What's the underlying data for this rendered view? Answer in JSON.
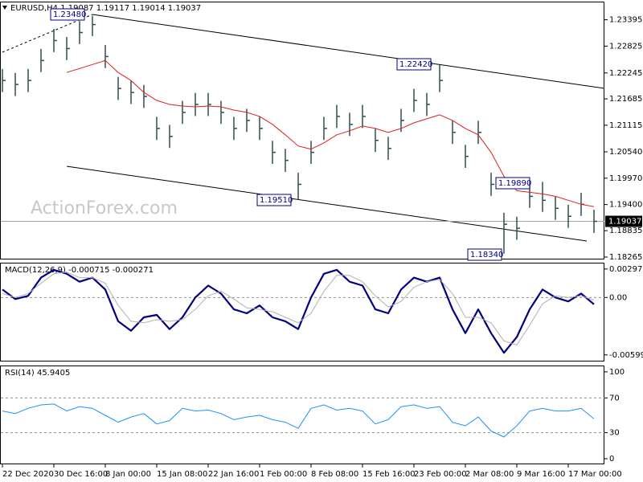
{
  "symbol_label": "EURUSD,H4  1.19087 1.19117 1.19014 1.19037",
  "watermark": "ActionForex.com",
  "chart_data": [
    {
      "type": "ohlc",
      "categories": [
        "22 Dec 2020",
        null,
        null,
        null,
        "30 Dec 16:00",
        null,
        null,
        null,
        "8 Jan 00:00",
        null,
        null,
        null,
        "15 Jan 08:00",
        null,
        null,
        null,
        "22 Jan 16:00",
        null,
        null,
        null,
        "1 Feb 00:00",
        null,
        null,
        null,
        "8 Feb 08:00",
        null,
        null,
        null,
        "15 Feb 16:00",
        null,
        null,
        null,
        "23 Feb 00:00",
        null,
        null,
        null,
        "2 Mar 08:00",
        null,
        null,
        null,
        "9 Mar 16:00",
        null,
        null,
        null,
        "17 Mar 00:00",
        null,
        null
      ],
      "high": [
        1.22332,
        1.22246,
        1.22332,
        1.22764,
        1.23196,
        1.23023,
        1.23369,
        1.2348,
        1.2285,
        1.2216,
        1.22073,
        1.21987,
        1.21296,
        1.21123,
        1.21642,
        1.21814,
        1.21814,
        1.21642,
        1.21296,
        1.21469,
        1.21296,
        1.20778,
        1.20605,
        1.20087,
        1.20778,
        1.21296,
        1.21555,
        1.21383,
        1.21555,
        1.21037,
        1.20864,
        1.21469,
        1.21901,
        1.21814,
        1.2242,
        1.2121,
        1.20692,
        1.2121,
        1.20087,
        1.19224,
        1.19138,
        1.19828,
        1.1989,
        1.19569,
        1.19396,
        1.19655,
        1.19287
      ],
      "low": [
        1.21832,
        1.21746,
        1.21832,
        1.22264,
        1.22696,
        1.22523,
        1.22869,
        1.23041,
        1.2235,
        1.2166,
        1.21573,
        1.21487,
        1.20796,
        1.20623,
        1.21142,
        1.21314,
        1.21314,
        1.21142,
        1.20796,
        1.20969,
        1.20796,
        1.20278,
        1.20105,
        1.1951,
        1.20278,
        1.20796,
        1.21055,
        1.20883,
        1.21055,
        1.20537,
        1.20364,
        1.20969,
        1.21401,
        1.21314,
        1.21832,
        1.2071,
        1.20192,
        1.2071,
        1.19587,
        1.1834,
        1.18638,
        1.19328,
        1.19242,
        1.19069,
        1.18896,
        1.19155,
        1.18787
      ],
      "close": [
        1.22082,
        1.21996,
        1.22082,
        1.22514,
        1.22946,
        1.22773,
        1.23119,
        1.23291,
        1.226,
        1.2191,
        1.21823,
        1.21737,
        1.21046,
        1.20873,
        1.21392,
        1.21564,
        1.21564,
        1.21392,
        1.21046,
        1.21219,
        1.21046,
        1.20528,
        1.20355,
        1.19837,
        1.20528,
        1.21046,
        1.21305,
        1.21133,
        1.21305,
        1.20787,
        1.20614,
        1.21219,
        1.21651,
        1.21564,
        1.22082,
        1.2096,
        1.20442,
        1.2096,
        1.19837,
        1.18974,
        1.18888,
        1.19578,
        1.19492,
        1.19319,
        1.19146,
        1.19405,
        1.19037
      ],
      "bar_color": "#2f4f4f",
      "ma": {
        "color": "#dd1f1f",
        "values": [
          null,
          null,
          null,
          null,
          null,
          1.22255,
          1.22341,
          1.22428,
          1.22514,
          1.22255,
          1.22082,
          1.21823,
          1.21651,
          1.21564,
          1.2153,
          1.21512,
          1.2153,
          1.21512,
          1.21443,
          1.21392,
          1.21305,
          1.21133,
          1.20908,
          1.20666,
          1.20597,
          1.20735,
          1.20908,
          1.20994,
          1.21098,
          1.21046,
          1.2096,
          1.21046,
          1.21167,
          1.21253,
          1.2134,
          1.21219,
          1.21046,
          1.20908,
          1.20528,
          1.2001,
          1.19699,
          1.19665,
          1.1963,
          1.19578,
          1.19492,
          1.19405,
          1.19354
        ]
      },
      "annotations": [
        {
          "text": "1.23480"
        },
        {
          "text": "1.22420"
        },
        {
          "text": "1.19510"
        },
        {
          "text": "1.19890"
        },
        {
          "text": "1.18340"
        }
      ],
      "current_price": {
        "value": 1.19037,
        "label": "1.19037"
      },
      "ylim": [
        1.1823,
        1.2377
      ],
      "yticks": [
        1.23395,
        1.22825,
        1.22245,
        1.21685,
        1.21115,
        {
          "value": 1.2054,
          "label": "1.20540"
        },
        {
          "value": 1.1997,
          "label": "1.19970"
        },
        {
          "value": 1.194,
          "label": "1.19400"
        },
        1.18835,
        1.18265
      ]
    },
    {
      "type": "line",
      "title": "MACD(12,26,9) -0.000715 -0.000271",
      "series": [
        {
          "color": "#000080",
          "width": 2.2,
          "values": [
            0.00083,
            -0.00017,
            0.00017,
            0.00207,
            0.00289,
            0.00248,
            0.00165,
            0.00207,
            0.00083,
            -0.00248,
            -0.00347,
            -0.00207,
            -0.00182,
            -0.0033,
            -0.00207,
            0,
            0.00124,
            0.00041,
            -0.00124,
            -0.00165,
            -0.00083,
            -0.00207,
            -0.00248,
            -0.0033,
            0,
            0.00248,
            0.00289,
            0.00165,
            0.00124,
            -0.00124,
            -0.00165,
            0.00083,
            0.00207,
            0.00165,
            0.00207,
            -0.00124,
            -0.00372,
            -0.00124,
            -0.00372,
            -0.00578,
            -0.00413,
            -0.00124,
            0.00083,
            0,
            -0.00041,
            0.00041,
            -0.000715
          ]
        },
        {
          "color": "#b0b0b0",
          "width": 1,
          "values": [
            0.00041,
            0,
            0.00041,
            0.00149,
            0.00248,
            0.00264,
            0.00207,
            0.00207,
            0.00149,
            -0.00083,
            -0.00248,
            -0.00264,
            -0.00231,
            -0.00248,
            -0.00231,
            -0.00124,
            0.00017,
            0.00066,
            -0.00017,
            -0.00107,
            -0.00124,
            -0.00149,
            -0.00207,
            -0.00264,
            -0.00165,
            0.00066,
            0.00231,
            0.00231,
            0.00165,
            0.00017,
            -0.00099,
            -0.00041,
            0.00107,
            0.00165,
            0.0019,
            0.00041,
            -0.00207,
            -0.00207,
            -0.00264,
            -0.00454,
            -0.00496,
            -0.00289,
            -0.00066,
            0.00017,
            0,
            0.00017,
            -0.000271
          ]
        }
      ],
      "ylim": [
        -0.0066,
        0.00355
      ],
      "yticks": [
        0.002973,
        {
          "value": 0,
          "label": "0.00"
        },
        -0.005996
      ],
      "levels": [
        0
      ]
    },
    {
      "type": "line",
      "title": "RSI(14) 45.9405",
      "series": [
        {
          "color": "#1e90ff",
          "width": 1,
          "values": [
            55,
            52,
            58,
            62,
            63,
            55,
            60,
            58,
            50,
            42,
            48,
            52,
            40,
            44,
            58,
            55,
            56,
            52,
            45,
            48,
            50,
            45,
            42,
            35,
            58,
            62,
            56,
            58,
            55,
            40,
            45,
            60,
            62,
            58,
            60,
            42,
            38,
            48,
            32,
            25,
            38,
            55,
            58,
            55,
            55,
            58,
            45.9405
          ]
        }
      ],
      "ylim": [
        -5.5,
        106.4
      ],
      "yticks": [
        100,
        70,
        30,
        0
      ],
      "levels": [
        70,
        30
      ]
    }
  ]
}
